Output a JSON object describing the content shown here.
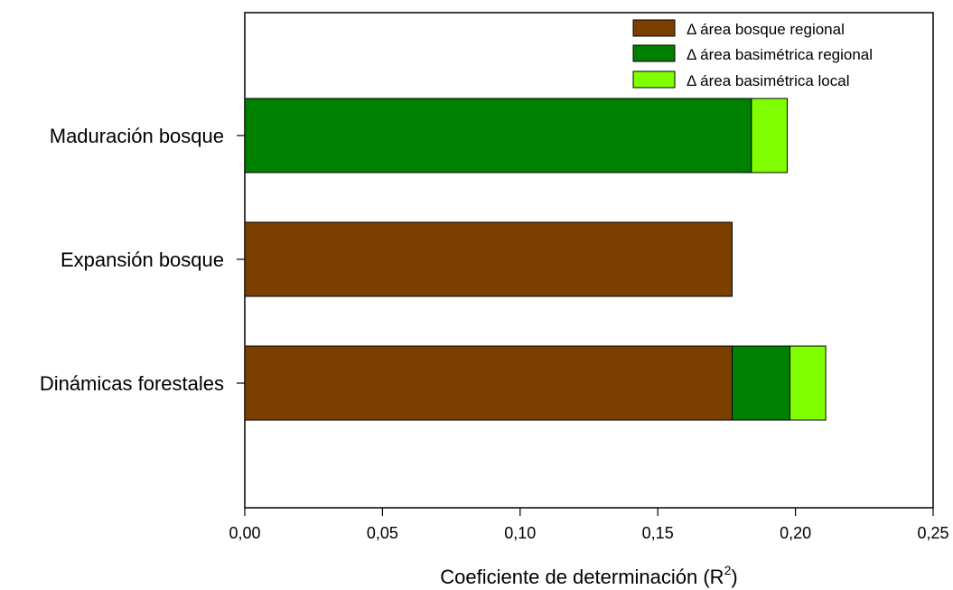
{
  "chart_data": {
    "type": "bar",
    "orientation": "horizontal",
    "stacked": true,
    "categories": [
      "Maduración bosque",
      "Expansión bosque",
      "Dinámicas forestales"
    ],
    "series": [
      {
        "name": "Δ área bosque regional",
        "color": "#7b3f00",
        "values": [
          0,
          0.177,
          0.177
        ]
      },
      {
        "name": "Δ área basimétrica regional",
        "color": "#008000",
        "values": [
          0.184,
          0,
          0.021
        ]
      },
      {
        "name": "Δ área basimétrica local",
        "color": "#80ff00",
        "values": [
          0.013,
          0,
          0.013
        ]
      }
    ],
    "xlabel": "Coeficiente de determinación (R",
    "xlabel_superscript": "2",
    "xlabel_suffix": ")",
    "xlim": [
      0,
      0.25
    ],
    "xticks": [
      0,
      0.05,
      0.1,
      0.15,
      0.2,
      0.25
    ],
    "xtick_labels": [
      "0,00",
      "0,05",
      "0,10",
      "0,15",
      "0,20",
      "0,25"
    ],
    "legend_position": "top-right",
    "grid": false
  }
}
